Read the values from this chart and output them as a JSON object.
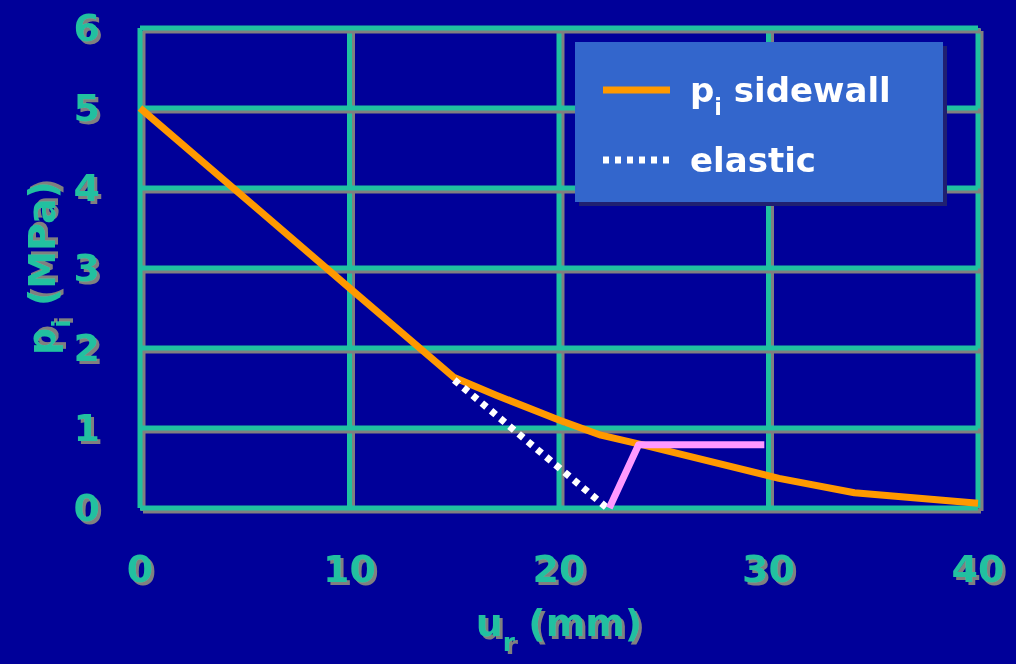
{
  "chart_data": {
    "type": "line",
    "xlabel": "u$_{r}$ (mm)",
    "ylabel": "p$_{i}$ (MPa)",
    "xlim": [
      0,
      40
    ],
    "xticks": [
      0,
      10,
      20,
      30,
      40
    ],
    "ylim": [
      0,
      6
    ],
    "yticks": [
      0,
      1,
      2,
      3,
      4,
      5,
      6
    ],
    "grid": true,
    "legend": "top right",
    "marker": "none",
    "series": [
      {
        "name": "p$_{i}$ sidewall",
        "color": "#ff9900",
        "x": [
          0,
          10,
          15,
          17,
          20,
          22,
          24,
          30.5,
          34.1,
          40
        ],
        "values": [
          5,
          2.75,
          1.63,
          1.41,
          1.1,
          0.91,
          0.79,
          0.37,
          0.19,
          0.06
        ],
        "line_style": "solid"
      },
      {
        "name": "elastic",
        "color": "#ffffff",
        "x": [
          15,
          22.3
        ],
        "values": [
          1.6,
          0
        ],
        "line_style": "dotted"
      },
      {
        "color": "#ff99ff",
        "x": [
          22.4,
          23.8,
          29.8
        ],
        "values": [
          0,
          0.79,
          0.79
        ],
        "line_style": "solid"
      }
    ]
  }
}
